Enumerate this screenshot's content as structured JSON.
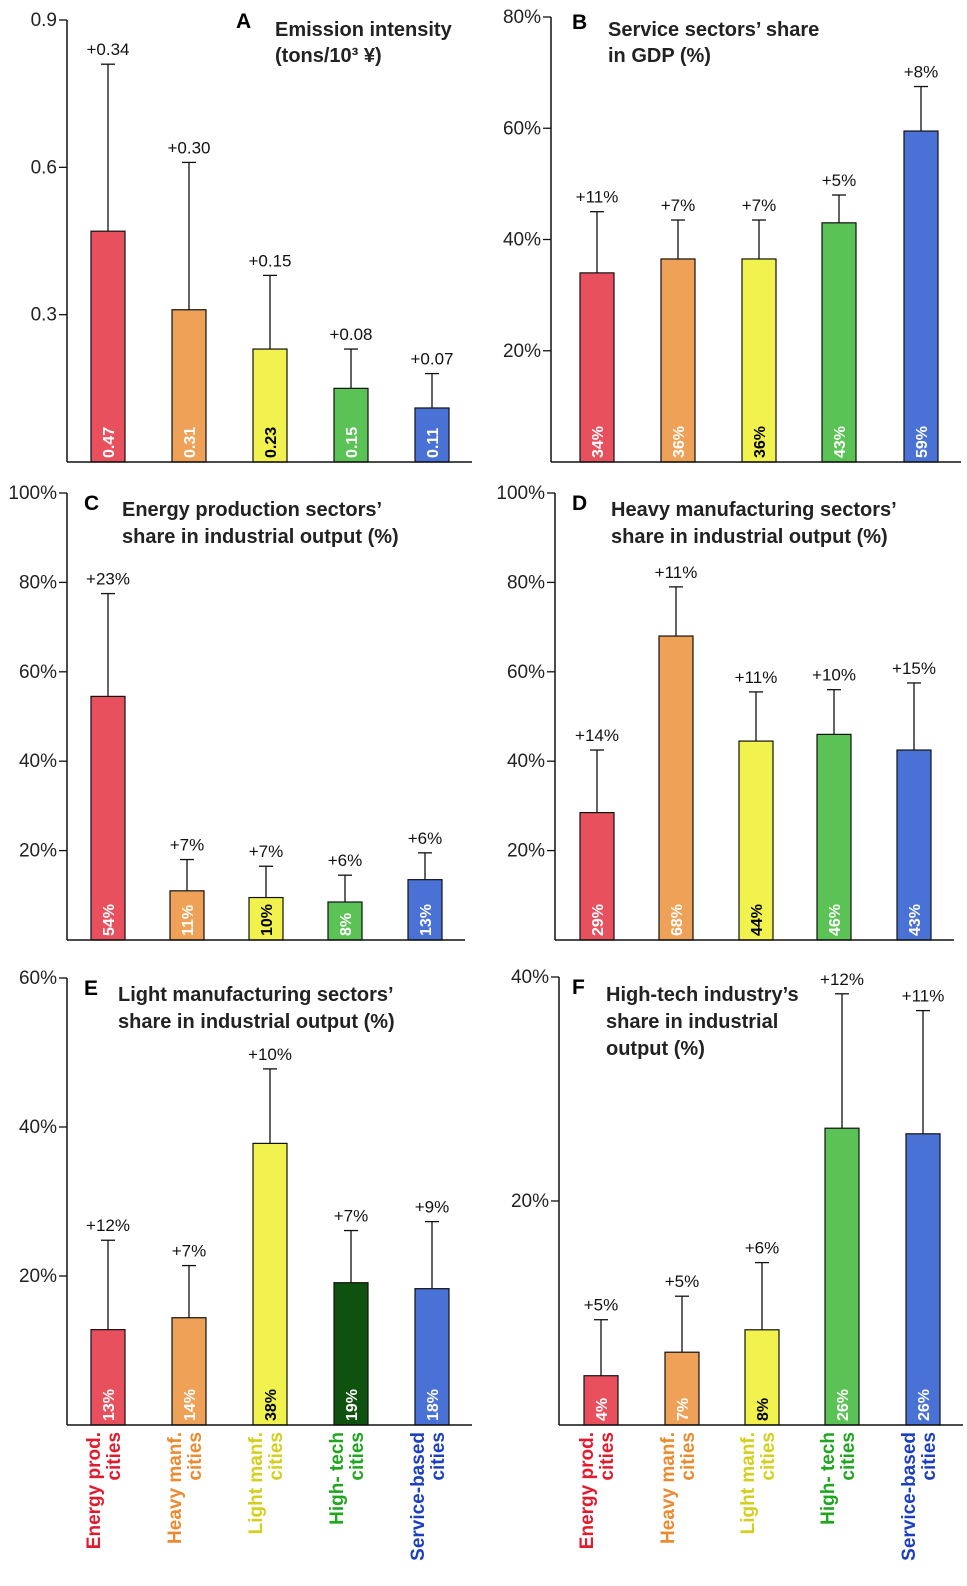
{
  "categories": [
    {
      "line1": "Energy prod.",
      "line2": "cities",
      "color": "#e31a2c"
    },
    {
      "line1": "Heavy manf.",
      "line2": "cities",
      "color": "#ec8a2f"
    },
    {
      "line1": "Light manf.",
      "line2": "cities",
      "color": "#d4cf1c"
    },
    {
      "line1": "High- tech",
      "line2": "cities",
      "color": "#1ea61e"
    },
    {
      "line1": "Service-based",
      "line2": "cities",
      "color": "#1c3fbf"
    }
  ],
  "chart_data": [
    {
      "type": "bar",
      "letter": "A",
      "title_lines": [
        "Emission intensity",
        "(tons/10³ ¥)"
      ],
      "categories": [
        "Energy prod. cities",
        "Heavy manf. cities",
        "Light manf. cities",
        "High- tech cities",
        "Service-based cities"
      ],
      "values": [
        0.47,
        0.31,
        0.23,
        0.15,
        0.11
      ],
      "value_labels": [
        "0.47",
        "0.31",
        "0.23",
        "0.15",
        "0.11"
      ],
      "errors": [
        0.34,
        0.3,
        0.15,
        0.08,
        0.07
      ],
      "error_labels": [
        "+0.34",
        "+0.30",
        "+0.15",
        "+0.08",
        "+0.07"
      ],
      "bar_colors": [
        "#e9505e",
        "#f0a158",
        "#f2f24e",
        "#5bc255",
        "#4a72d6"
      ],
      "value_label_colors": [
        "#ffffff",
        "#ffffff",
        "#000000",
        "#ffffff",
        "#ffffff"
      ],
      "ylim": [
        0,
        0.9
      ],
      "yticks": [
        0.3,
        0.6,
        0.9
      ],
      "ytick_labels": [
        "0.3",
        "0.6",
        "0.9"
      ]
    },
    {
      "type": "bar",
      "letter": "B",
      "title_lines": [
        "Service sectors’ share",
        "in GDP (%)"
      ],
      "categories": [
        "Energy prod. cities",
        "Heavy manf. cities",
        "Light manf. cities",
        "High- tech cities",
        "Service-based cities"
      ],
      "values": [
        34,
        36.5,
        36.5,
        43,
        59.5
      ],
      "value_labels": [
        "34%",
        "36%",
        "36%",
        "43%",
        "59%"
      ],
      "errors": [
        11,
        7,
        7,
        5,
        8
      ],
      "error_labels": [
        "+11%",
        "+7%",
        "+7%",
        "+5%",
        "+8%"
      ],
      "bar_colors": [
        "#e9505e",
        "#f0a158",
        "#f2f24e",
        "#5bc255",
        "#4a72d6"
      ],
      "value_label_colors": [
        "#ffffff",
        "#ffffff",
        "#000000",
        "#ffffff",
        "#ffffff"
      ],
      "ylim": [
        0,
        80
      ],
      "yticks": [
        20,
        40,
        60,
        80
      ],
      "ytick_labels": [
        "20%",
        "40%",
        "60%",
        "80%"
      ]
    },
    {
      "type": "bar",
      "letter": "C",
      "title_lines": [
        "Energy production sectors’",
        "share in industrial output (%)"
      ],
      "categories": [
        "Energy prod. cities",
        "Heavy manf. cities",
        "Light manf. cities",
        "High- tech cities",
        "Service-based cities"
      ],
      "values": [
        54.5,
        11,
        9.5,
        8.5,
        13.5
      ],
      "value_labels": [
        "54%",
        "11%",
        "10%",
        "8%",
        "13%"
      ],
      "errors": [
        23,
        7,
        7,
        6,
        6
      ],
      "error_labels": [
        "+23%",
        "+7%",
        "+7%",
        "+6%",
        "+6%"
      ],
      "bar_colors": [
        "#e9505e",
        "#f0a158",
        "#f2f24e",
        "#5bc255",
        "#4a72d6"
      ],
      "value_label_colors": [
        "#ffffff",
        "#ffffff",
        "#000000",
        "#ffffff",
        "#ffffff"
      ],
      "ylim": [
        0,
        100
      ],
      "yticks": [
        20,
        40,
        60,
        80,
        100
      ],
      "ytick_labels": [
        "20%",
        "40%",
        "60%",
        "80%",
        "100%"
      ]
    },
    {
      "type": "bar",
      "letter": "D",
      "title_lines": [
        "Heavy manufacturing sectors’",
        "share in industrial output (%)"
      ],
      "categories": [
        "Energy prod. cities",
        "Heavy manf. cities",
        "Light manf. cities",
        "High- tech cities",
        "Service-based cities"
      ],
      "values": [
        28.5,
        68,
        44.5,
        46,
        42.5
      ],
      "value_labels": [
        "29%",
        "68%",
        "44%",
        "46%",
        "43%"
      ],
      "errors": [
        14,
        11,
        11,
        10,
        15
      ],
      "error_labels": [
        "+14%",
        "+11%",
        "+11%",
        "+10%",
        "+15%"
      ],
      "bar_colors": [
        "#e9505e",
        "#f0a158",
        "#f2f24e",
        "#5bc255",
        "#4a72d6"
      ],
      "value_label_colors": [
        "#ffffff",
        "#ffffff",
        "#000000",
        "#ffffff",
        "#ffffff"
      ],
      "ylim": [
        0,
        100
      ],
      "yticks": [
        20,
        40,
        60,
        80,
        100
      ],
      "ytick_labels": [
        "20%",
        "40%",
        "60%",
        "80%",
        "100%"
      ]
    },
    {
      "type": "bar",
      "letter": "E",
      "title_lines": [
        "Light manufacturing sectors’",
        "share in industrial output (%)"
      ],
      "categories": [
        "Energy prod. cities",
        "Heavy manf. cities",
        "Light manf. cities",
        "High- tech cities",
        "Service-based cities"
      ],
      "values": [
        12.8,
        14.4,
        37.8,
        19.1,
        18.3
      ],
      "value_labels": [
        "13%",
        "14%",
        "38%",
        "19%",
        "18%"
      ],
      "errors": [
        12,
        7,
        10,
        7,
        9
      ],
      "error_labels": [
        "+12%",
        "+7%",
        "+10%",
        "+7%",
        "+9%"
      ],
      "bar_colors": [
        "#e9505e",
        "#f0a158",
        "#f2f24e",
        "#0f520f",
        "#4a72d6"
      ],
      "value_label_colors": [
        "#ffffff",
        "#ffffff",
        "#000000",
        "#ffffff",
        "#ffffff"
      ],
      "ylim": [
        0,
        60
      ],
      "yticks": [
        20,
        40,
        60
      ],
      "ytick_labels": [
        "20%",
        "40%",
        "60%"
      ]
    },
    {
      "type": "bar",
      "letter": "F",
      "title_lines": [
        "High-tech industry’s",
        "share in industrial",
        "output (%)"
      ],
      "categories": [
        "Energy prod. cities",
        "Heavy manf. cities",
        "Light manf. cities",
        "High- tech cities",
        "Service-based cities"
      ],
      "values": [
        4.4,
        6.5,
        8.5,
        26.5,
        26
      ],
      "value_labels": [
        "4%",
        "7%",
        "8%",
        "26%",
        "26%"
      ],
      "errors": [
        5,
        5,
        6,
        12,
        11
      ],
      "error_labels": [
        "+5%",
        "+5%",
        "+6%",
        "+12%",
        "+11%"
      ],
      "bar_colors": [
        "#e9505e",
        "#f0a158",
        "#f2f24e",
        "#5bc255",
        "#4a72d6"
      ],
      "value_label_colors": [
        "#ffffff",
        "#ffffff",
        "#000000",
        "#ffffff",
        "#ffffff"
      ],
      "ylim": [
        0,
        40
      ],
      "yticks": [
        20,
        40
      ],
      "ytick_labels": [
        "20%",
        "40%"
      ]
    }
  ]
}
